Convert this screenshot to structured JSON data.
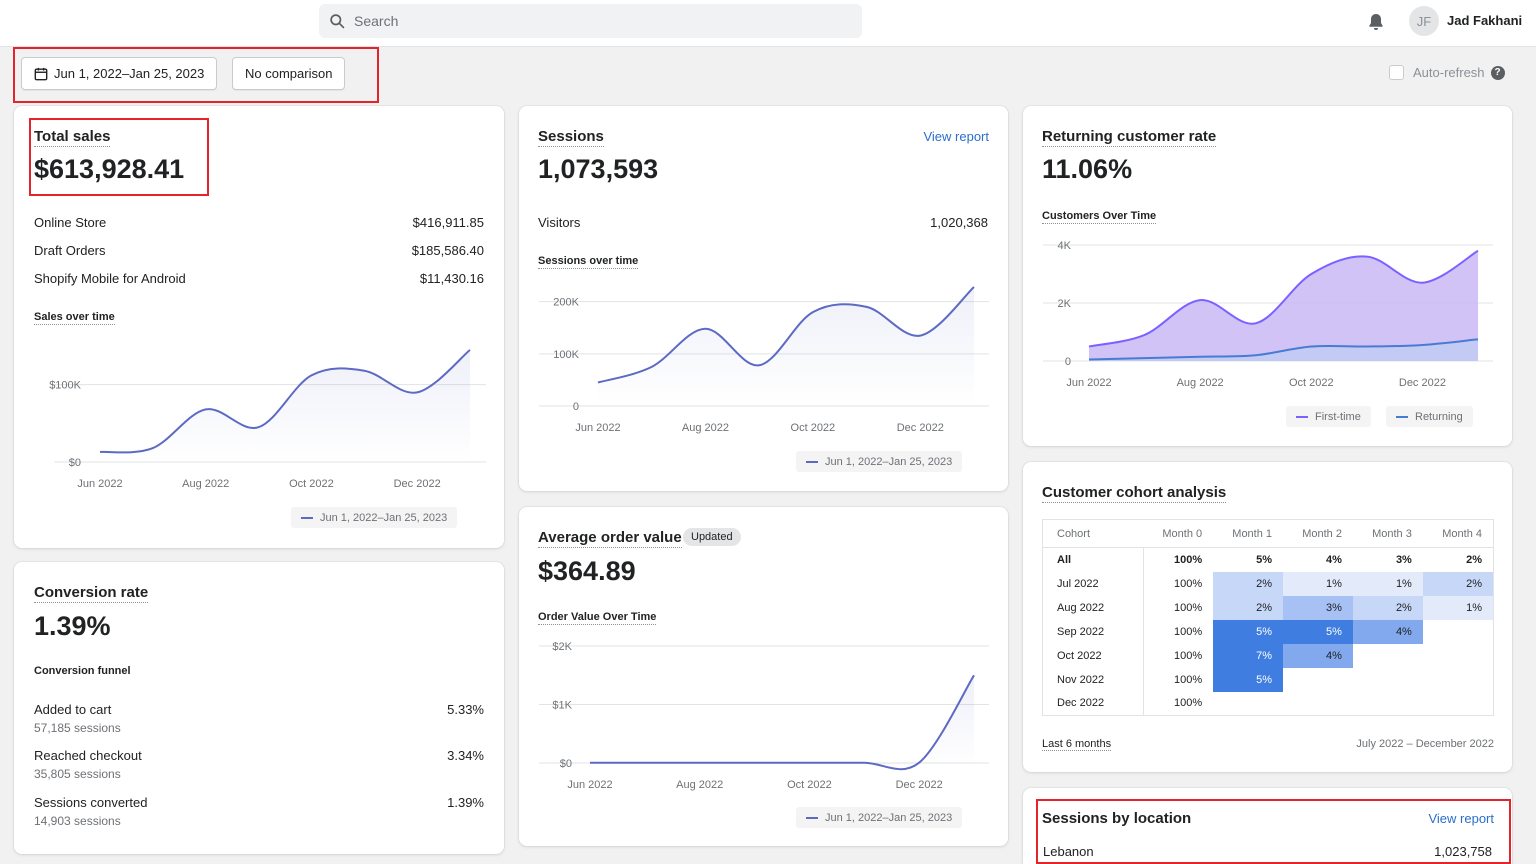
{
  "topbar": {
    "search_placeholder": "Search",
    "user_initials": "JF",
    "user_name": "Jad Fakhani"
  },
  "toolbar": {
    "date_range": "Jun 1, 2022–Jan 25, 2023",
    "comparison": "No comparison",
    "auto_refresh_label": "Auto-refresh",
    "help_glyph": "?"
  },
  "total_sales": {
    "title": "Total sales",
    "value": "$613,928.41",
    "channels": [
      {
        "label": "Online Store",
        "value": "$416,911.85"
      },
      {
        "label": "Draft Orders",
        "value": "$185,586.40"
      },
      {
        "label": "Shopify Mobile for Android",
        "value": "$11,430.16"
      }
    ],
    "chart_title": "Sales over time",
    "legend": "Jun 1, 2022–Jan 25, 2023"
  },
  "sessions": {
    "title": "Sessions",
    "view_report": "View report",
    "value": "1,073,593",
    "visitors_label": "Visitors",
    "visitors_value": "1,020,368",
    "chart_title": "Sessions over time",
    "legend": "Jun 1, 2022–Jan 25, 2023"
  },
  "returning": {
    "title": "Returning customer rate",
    "value": "11.06%",
    "chart_title": "Customers Over Time",
    "legend_first": "First-time",
    "legend_returning": "Returning"
  },
  "conversion": {
    "title": "Conversion rate",
    "value": "1.39%",
    "funnel_title": "Conversion funnel",
    "steps": [
      {
        "label": "Added to cart",
        "sessions": "57,185 sessions",
        "value": "5.33%"
      },
      {
        "label": "Reached checkout",
        "sessions": "35,805 sessions",
        "value": "3.34%"
      },
      {
        "label": "Sessions converted",
        "sessions": "14,903 sessions",
        "value": "1.39%"
      }
    ]
  },
  "aov": {
    "title": "Average order value",
    "badge": "Updated",
    "value": "$364.89",
    "chart_title": "Order Value Over Time",
    "legend": "Jun 1, 2022–Jan 25, 2023"
  },
  "cohort": {
    "title": "Customer cohort analysis",
    "headers": [
      "Cohort",
      "Month 0",
      "Month 1",
      "Month 2",
      "Month 3",
      "Month 4"
    ],
    "rows": [
      [
        "All",
        "100%",
        "5%",
        "4%",
        "3%",
        "2%"
      ],
      [
        "Jul 2022",
        "100%",
        "2%",
        "1%",
        "1%",
        "2%"
      ],
      [
        "Aug 2022",
        "100%",
        "2%",
        "3%",
        "2%",
        "1%"
      ],
      [
        "Sep 2022",
        "100%",
        "5%",
        "5%",
        "4%",
        ""
      ],
      [
        "Oct 2022",
        "100%",
        "7%",
        "4%",
        "",
        ""
      ],
      [
        "Nov 2022",
        "100%",
        "5%",
        "",
        "",
        ""
      ],
      [
        "Dec 2022",
        "100%",
        "",
        "",
        "",
        ""
      ]
    ],
    "footer_left": "Last 6 months",
    "footer_right": "July 2022 – December 2022"
  },
  "location": {
    "title": "Sessions by location",
    "view_report": "View report",
    "rows": [
      {
        "label": "Lebanon",
        "value": "1,023,758"
      }
    ]
  },
  "colors": {
    "accent": "#5c6ac4",
    "link": "#2c6ecb",
    "highlight": "#e3242b",
    "purple_fill": "#c9b8f5",
    "blue_line": "#4a7bd4"
  },
  "chart_data": [
    {
      "type": "line",
      "title": "Sales over time",
      "x": [
        "Jun 2022",
        "Jul 2022",
        "Aug 2022",
        "Sep 2022",
        "Oct 2022",
        "Nov 2022",
        "Dec 2022",
        "Jan 2023"
      ],
      "yticks": [
        "$0",
        "$100K"
      ],
      "ylim": [
        0,
        150000
      ],
      "series": [
        {
          "name": "Jun 1, 2022–Jan 25, 2023",
          "values": [
            13000,
            18000,
            68000,
            45000,
            112000,
            118000,
            90000,
            145000
          ]
        }
      ]
    },
    {
      "type": "line",
      "title": "Sessions over time",
      "x": [
        "Jun 2022",
        "Jul 2022",
        "Aug 2022",
        "Sep 2022",
        "Oct 2022",
        "Nov 2022",
        "Dec 2022",
        "Jan 2023"
      ],
      "yticks": [
        "0",
        "100K",
        "200K"
      ],
      "ylim": [
        0,
        230000
      ],
      "series": [
        {
          "name": "Jun 1, 2022–Jan 25, 2023",
          "values": [
            45000,
            75000,
            148000,
            78000,
            180000,
            190000,
            135000,
            228000
          ]
        }
      ]
    },
    {
      "type": "area",
      "title": "Customers Over Time",
      "x": [
        "Jun 2022",
        "Jul 2022",
        "Aug 2022",
        "Sep 2022",
        "Oct 2022",
        "Nov 2022",
        "Dec 2022",
        "Jan 2023"
      ],
      "yticks": [
        "0",
        "2K",
        "4K"
      ],
      "ylim": [
        0,
        4000
      ],
      "series": [
        {
          "name": "First-time",
          "values": [
            500,
            900,
            2100,
            1300,
            3000,
            3600,
            2700,
            3800
          ]
        },
        {
          "name": "Returning",
          "values": [
            50,
            100,
            150,
            200,
            500,
            500,
            550,
            750
          ]
        }
      ]
    },
    {
      "type": "line",
      "title": "Order Value Over Time",
      "x": [
        "Jun 2022",
        "Jul 2022",
        "Aug 2022",
        "Sep 2022",
        "Oct 2022",
        "Nov 2022",
        "Dec 2022",
        "Jan 2023"
      ],
      "yticks": [
        "$0",
        "$1K",
        "$2K"
      ],
      "ylim": [
        0,
        2000
      ],
      "series": [
        {
          "name": "Jun 1, 2022–Jan 25, 2023",
          "values": [
            5,
            5,
            5,
            5,
            5,
            5,
            5,
            1500
          ]
        }
      ]
    }
  ]
}
